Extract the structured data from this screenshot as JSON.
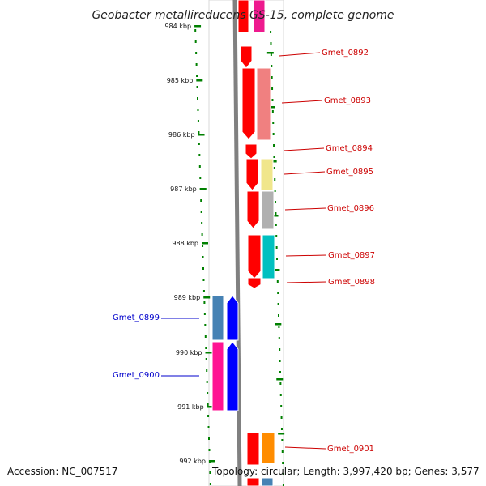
{
  "title": "Geobacter metallireducens GS-15, complete genome",
  "accession_text": "Accession: NC_007517",
  "summary_text": "Topology: circular; Length: 3,997,420 bp; Genes: 3,577",
  "scale_labels": [
    "984 kbp",
    "985 kbp",
    "986 kbp",
    "987 kbp",
    "988 kbp",
    "989 kbp",
    "990 kbp",
    "991 kbp",
    "992 kbp"
  ],
  "colors": {
    "forward_strand": "#ff0000",
    "reverse_strand": "#0000ff",
    "backbone": "#808080",
    "ticks": "#008000",
    "label_forward": "#cc0000",
    "label_reverse": "#0000cc"
  },
  "genes": [
    {
      "name": "Gmet_0892",
      "strand": "+",
      "color": "#ff0000"
    },
    {
      "name": "Gmet_0893",
      "strand": "+",
      "color": "#f08080"
    },
    {
      "name": "Gmet_0894",
      "strand": "+",
      "color": "#ff0000"
    },
    {
      "name": "Gmet_0895",
      "strand": "+",
      "color": "#f0e68c"
    },
    {
      "name": "Gmet_0896",
      "strand": "+",
      "color": "#b0b0b0"
    },
    {
      "name": "Gmet_0897",
      "strand": "+",
      "color": "#00c0c0"
    },
    {
      "name": "Gmet_0898",
      "strand": "+",
      "color": "#ff0000"
    },
    {
      "name": "Gmet_0899",
      "strand": "-",
      "color": "#4682b4"
    },
    {
      "name": "Gmet_0900",
      "strand": "-",
      "color": "#ff1493"
    },
    {
      "name": "Gmet_0901",
      "strand": "+",
      "color": "#ff8c00"
    }
  ]
}
